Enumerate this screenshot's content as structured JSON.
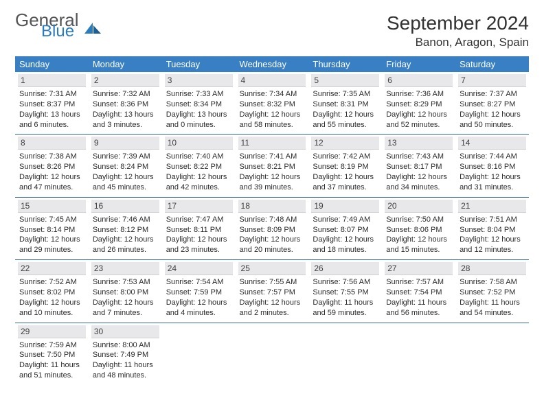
{
  "brand": {
    "general": "General",
    "blue": "Blue"
  },
  "title": "September 2024",
  "location": "Banon, Aragon, Spain",
  "colors": {
    "header_bg": "#3880c3",
    "header_fg": "#ffffff",
    "rule": "#30649a",
    "daynum_bg": "#e8e8ea"
  },
  "weekdays": [
    "Sunday",
    "Monday",
    "Tuesday",
    "Wednesday",
    "Thursday",
    "Friday",
    "Saturday"
  ],
  "days": [
    {
      "n": "1",
      "sr": "7:31 AM",
      "ss": "8:37 PM",
      "dl": "13 hours and 6 minutes."
    },
    {
      "n": "2",
      "sr": "7:32 AM",
      "ss": "8:36 PM",
      "dl": "13 hours and 3 minutes."
    },
    {
      "n": "3",
      "sr": "7:33 AM",
      "ss": "8:34 PM",
      "dl": "13 hours and 0 minutes."
    },
    {
      "n": "4",
      "sr": "7:34 AM",
      "ss": "8:32 PM",
      "dl": "12 hours and 58 minutes."
    },
    {
      "n": "5",
      "sr": "7:35 AM",
      "ss": "8:31 PM",
      "dl": "12 hours and 55 minutes."
    },
    {
      "n": "6",
      "sr": "7:36 AM",
      "ss": "8:29 PM",
      "dl": "12 hours and 52 minutes."
    },
    {
      "n": "7",
      "sr": "7:37 AM",
      "ss": "8:27 PM",
      "dl": "12 hours and 50 minutes."
    },
    {
      "n": "8",
      "sr": "7:38 AM",
      "ss": "8:26 PM",
      "dl": "12 hours and 47 minutes."
    },
    {
      "n": "9",
      "sr": "7:39 AM",
      "ss": "8:24 PM",
      "dl": "12 hours and 45 minutes."
    },
    {
      "n": "10",
      "sr": "7:40 AM",
      "ss": "8:22 PM",
      "dl": "12 hours and 42 minutes."
    },
    {
      "n": "11",
      "sr": "7:41 AM",
      "ss": "8:21 PM",
      "dl": "12 hours and 39 minutes."
    },
    {
      "n": "12",
      "sr": "7:42 AM",
      "ss": "8:19 PM",
      "dl": "12 hours and 37 minutes."
    },
    {
      "n": "13",
      "sr": "7:43 AM",
      "ss": "8:17 PM",
      "dl": "12 hours and 34 minutes."
    },
    {
      "n": "14",
      "sr": "7:44 AM",
      "ss": "8:16 PM",
      "dl": "12 hours and 31 minutes."
    },
    {
      "n": "15",
      "sr": "7:45 AM",
      "ss": "8:14 PM",
      "dl": "12 hours and 29 minutes."
    },
    {
      "n": "16",
      "sr": "7:46 AM",
      "ss": "8:12 PM",
      "dl": "12 hours and 26 minutes."
    },
    {
      "n": "17",
      "sr": "7:47 AM",
      "ss": "8:11 PM",
      "dl": "12 hours and 23 minutes."
    },
    {
      "n": "18",
      "sr": "7:48 AM",
      "ss": "8:09 PM",
      "dl": "12 hours and 20 minutes."
    },
    {
      "n": "19",
      "sr": "7:49 AM",
      "ss": "8:07 PM",
      "dl": "12 hours and 18 minutes."
    },
    {
      "n": "20",
      "sr": "7:50 AM",
      "ss": "8:06 PM",
      "dl": "12 hours and 15 minutes."
    },
    {
      "n": "21",
      "sr": "7:51 AM",
      "ss": "8:04 PM",
      "dl": "12 hours and 12 minutes."
    },
    {
      "n": "22",
      "sr": "7:52 AM",
      "ss": "8:02 PM",
      "dl": "12 hours and 10 minutes."
    },
    {
      "n": "23",
      "sr": "7:53 AM",
      "ss": "8:00 PM",
      "dl": "12 hours and 7 minutes."
    },
    {
      "n": "24",
      "sr": "7:54 AM",
      "ss": "7:59 PM",
      "dl": "12 hours and 4 minutes."
    },
    {
      "n": "25",
      "sr": "7:55 AM",
      "ss": "7:57 PM",
      "dl": "12 hours and 2 minutes."
    },
    {
      "n": "26",
      "sr": "7:56 AM",
      "ss": "7:55 PM",
      "dl": "11 hours and 59 minutes."
    },
    {
      "n": "27",
      "sr": "7:57 AM",
      "ss": "7:54 PM",
      "dl": "11 hours and 56 minutes."
    },
    {
      "n": "28",
      "sr": "7:58 AM",
      "ss": "7:52 PM",
      "dl": "11 hours and 54 minutes."
    },
    {
      "n": "29",
      "sr": "7:59 AM",
      "ss": "7:50 PM",
      "dl": "11 hours and 51 minutes."
    },
    {
      "n": "30",
      "sr": "8:00 AM",
      "ss": "7:49 PM",
      "dl": "11 hours and 48 minutes."
    }
  ],
  "labels": {
    "sunrise": "Sunrise:",
    "sunset": "Sunset:",
    "daylight": "Daylight:"
  }
}
